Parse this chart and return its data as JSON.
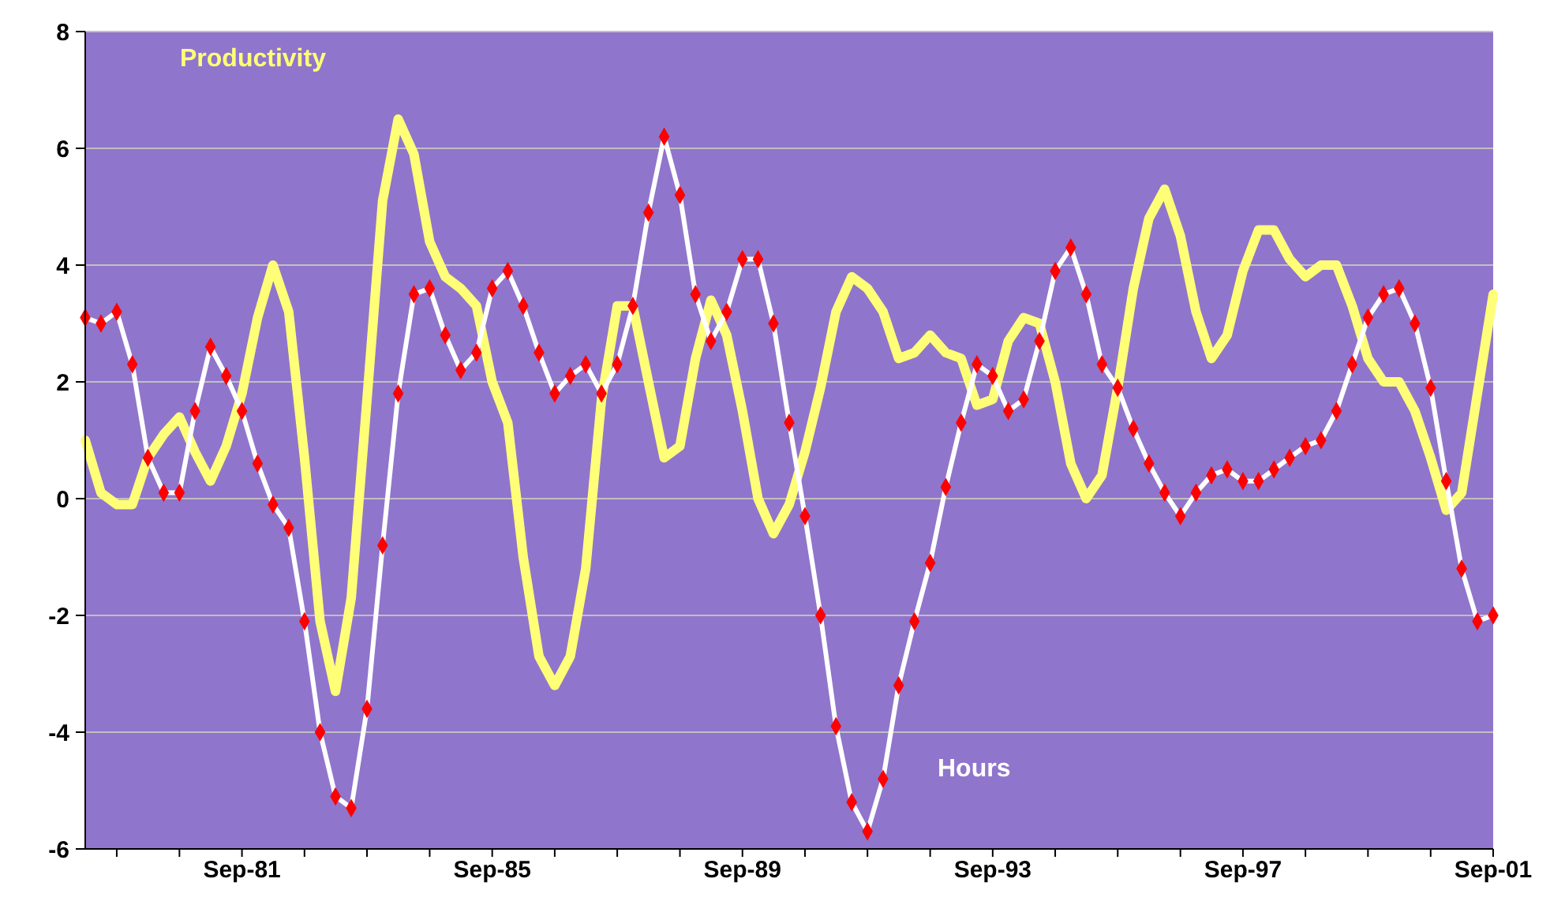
{
  "chart_data": {
    "type": "line",
    "x": [
      "1979-03",
      "1979-06",
      "1979-09",
      "1979-12",
      "1980-03",
      "1980-06",
      "1980-09",
      "1980-12",
      "1981-03",
      "1981-06",
      "1981-09",
      "1981-12",
      "1982-03",
      "1982-06",
      "1982-09",
      "1982-12",
      "1983-03",
      "1983-06",
      "1983-09",
      "1983-12",
      "1984-03",
      "1984-06",
      "1984-09",
      "1984-12",
      "1985-03",
      "1985-06",
      "1985-09",
      "1985-12",
      "1986-03",
      "1986-06",
      "1986-09",
      "1986-12",
      "1987-03",
      "1987-06",
      "1987-09",
      "1987-12",
      "1988-03",
      "1988-06",
      "1988-09",
      "1988-12",
      "1989-03",
      "1989-06",
      "1989-09",
      "1989-12",
      "1990-03",
      "1990-06",
      "1990-09",
      "1990-12",
      "1991-03",
      "1991-06",
      "1991-09",
      "1991-12",
      "1992-03",
      "1992-06",
      "1992-09",
      "1992-12",
      "1993-03",
      "1993-06",
      "1993-09",
      "1993-12",
      "1994-03",
      "1994-06",
      "1994-09",
      "1994-12",
      "1995-03",
      "1995-06",
      "1995-09",
      "1995-12",
      "1996-03",
      "1996-06",
      "1996-09",
      "1996-12",
      "1997-03",
      "1997-06",
      "1997-09",
      "1997-12",
      "1998-03",
      "1998-06",
      "1998-09",
      "1998-12",
      "1999-03",
      "1999-06",
      "1999-09",
      "1999-12",
      "2000-03",
      "2000-06",
      "2000-09",
      "2000-12",
      "2001-03",
      "2001-06",
      "2001-09"
    ],
    "series": [
      {
        "name": "Productivity",
        "color": "#ffff77",
        "marker": "none",
        "values": [
          1.0,
          0.1,
          -0.1,
          -0.1,
          0.7,
          1.1,
          1.4,
          0.8,
          0.3,
          0.9,
          1.8,
          3.1,
          4.0,
          3.2,
          0.7,
          -2.1,
          -3.3,
          -1.7,
          1.7,
          5.1,
          6.5,
          5.9,
          4.4,
          3.8,
          3.6,
          3.3,
          2.0,
          1.3,
          -1.0,
          -2.7,
          -3.2,
          -2.7,
          -1.2,
          1.7,
          3.3,
          3.3,
          2.0,
          0.7,
          0.9,
          2.4,
          3.4,
          2.8,
          1.5,
          0.0,
          -0.6,
          -0.1,
          0.8,
          1.9,
          3.2,
          3.8,
          3.6,
          3.2,
          2.4,
          2.5,
          2.8,
          2.5,
          2.4,
          1.6,
          1.7,
          2.7,
          3.1,
          3.0,
          2.0,
          0.6,
          0.0,
          0.4,
          1.9,
          3.6,
          4.8,
          5.3,
          4.5,
          3.2,
          2.4,
          2.8,
          3.9,
          4.6,
          4.6,
          4.1,
          3.8,
          4.0,
          4.0,
          3.3,
          2.4,
          2.0,
          2.0,
          1.5,
          0.7,
          -0.2,
          0.1,
          1.8,
          3.5
        ]
      },
      {
        "name": "Hours",
        "color": "#ffffff",
        "marker": "diamond",
        "values": [
          3.1,
          3.0,
          3.2,
          2.3,
          0.7,
          0.1,
          0.1,
          1.5,
          2.6,
          2.1,
          1.5,
          0.6,
          -0.1,
          -0.5,
          -2.1,
          -4.0,
          -5.1,
          -5.3,
          -3.6,
          -0.8,
          1.8,
          3.5,
          3.6,
          2.8,
          2.2,
          2.5,
          3.6,
          3.9,
          3.3,
          2.5,
          1.8,
          2.1,
          2.3,
          1.8,
          2.3,
          3.3,
          4.9,
          6.2,
          5.2,
          3.5,
          2.7,
          3.2,
          4.1,
          4.1,
          3.0,
          1.3,
          -0.3,
          -2.0,
          -3.9,
          -5.2,
          -5.7,
          -4.8,
          -3.2,
          -2.1,
          -1.1,
          0.2,
          1.3,
          2.3,
          2.1,
          1.5,
          1.7,
          2.7,
          3.9,
          4.3,
          3.5,
          2.3,
          1.9,
          1.2,
          0.6,
          0.1,
          -0.3,
          0.1,
          0.4,
          0.5,
          0.3,
          0.3,
          0.5,
          0.7,
          0.9,
          1.0,
          1.5,
          2.3,
          3.1,
          3.5,
          3.6,
          3.0,
          1.9,
          0.3,
          -1.2,
          -2.1,
          -2.0
        ]
      }
    ],
    "xlim": [
      "1979-03",
      "2001-09"
    ],
    "xticks": [
      {
        "value": "1979-09",
        "label": null
      },
      {
        "value": "1980-09",
        "label": null
      },
      {
        "value": "1981-09",
        "label": "Sep-81"
      },
      {
        "value": "1982-09",
        "label": null
      },
      {
        "value": "1983-09",
        "label": null
      },
      {
        "value": "1984-09",
        "label": null
      },
      {
        "value": "1985-09",
        "label": "Sep-85"
      },
      {
        "value": "1986-09",
        "label": null
      },
      {
        "value": "1987-09",
        "label": null
      },
      {
        "value": "1988-09",
        "label": null
      },
      {
        "value": "1989-09",
        "label": "Sep-89"
      },
      {
        "value": "1990-09",
        "label": null
      },
      {
        "value": "1991-09",
        "label": null
      },
      {
        "value": "1992-09",
        "label": null
      },
      {
        "value": "1993-09",
        "label": "Sep-93"
      },
      {
        "value": "1994-09",
        "label": null
      },
      {
        "value": "1995-09",
        "label": null
      },
      {
        "value": "1996-09",
        "label": null
      },
      {
        "value": "1997-09",
        "label": "Sep-97"
      },
      {
        "value": "1998-09",
        "label": null
      },
      {
        "value": "1999-09",
        "label": null
      },
      {
        "value": "2000-09",
        "label": null
      },
      {
        "value": "2001-09",
        "label": "Sep-01"
      }
    ],
    "ylim": [
      -6,
      8
    ],
    "yticks": [
      -6,
      -4,
      -2,
      0,
      2,
      4,
      6,
      8
    ],
    "grid": "y"
  }
}
